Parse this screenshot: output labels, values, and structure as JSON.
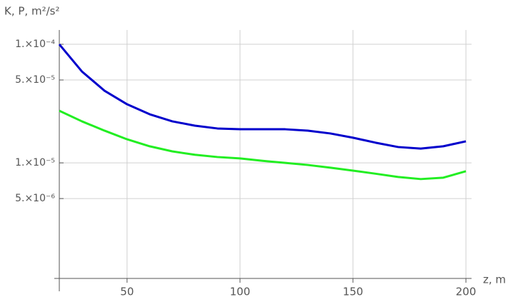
{
  "chart_data": {
    "type": "line",
    "xlabel": "z, m",
    "ylabel": "K, P, m²/s²",
    "x": [
      20,
      30,
      40,
      50,
      60,
      70,
      80,
      90,
      100,
      110,
      120,
      130,
      140,
      150,
      160,
      170,
      180,
      190,
      200
    ],
    "series": [
      {
        "color": "#0000cc",
        "values": [
          0.0001,
          5.9e-05,
          4.06e-05,
          3.12e-05,
          2.57e-05,
          2.24e-05,
          2.06e-05,
          1.95e-05,
          1.92e-05,
          1.92e-05,
          1.92e-05,
          1.87e-05,
          1.77e-05,
          1.63e-05,
          1.48e-05,
          1.36e-05,
          1.32e-05,
          1.38e-05,
          1.52e-05
        ]
      },
      {
        "color": "#22ee22",
        "values": [
          2.75e-05,
          2.24e-05,
          1.87e-05,
          1.58e-05,
          1.38e-05,
          1.25e-05,
          1.17e-05,
          1.12e-05,
          1.09e-05,
          1.04e-05,
          1e-05,
          9.6e-06,
          9.1e-06,
          8.6e-06,
          8.1e-06,
          7.6e-06,
          7.3e-06,
          7.5e-06,
          8.5e-06
        ]
      }
    ],
    "xlim": [
      20,
      202.5
    ],
    "ylim": [
      1.06e-06,
      0.000132
    ],
    "log_y": true,
    "grid": true,
    "xticks": [
      50,
      100,
      150,
      200
    ],
    "yticks": [
      {
        "value": 0.0001,
        "label": "1.×10⁻⁴"
      },
      {
        "value": 5e-05,
        "label": "5.×10⁻⁵"
      },
      {
        "value": 1e-05,
        "label": "1.×10⁻⁵"
      },
      {
        "value": 5e-06,
        "label": "5.×10⁻⁶"
      }
    ]
  }
}
